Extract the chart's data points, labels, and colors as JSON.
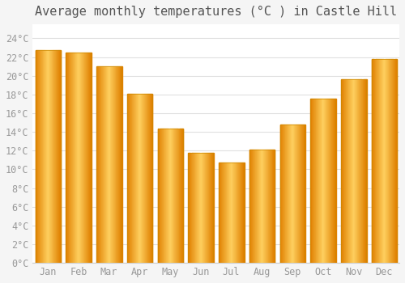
{
  "title": "Average monthly temperatures (°C ) in Castle Hill",
  "months": [
    "Jan",
    "Feb",
    "Mar",
    "Apr",
    "May",
    "Jun",
    "Jul",
    "Aug",
    "Sep",
    "Oct",
    "Nov",
    "Dec"
  ],
  "values": [
    22.7,
    22.5,
    21.0,
    18.1,
    14.4,
    11.8,
    10.7,
    12.1,
    14.8,
    17.6,
    19.6,
    21.8
  ],
  "bar_color_main": "#FFA500",
  "bar_color_light": "#FFD060",
  "bar_color_dark": "#E08000",
  "background_color": "#F5F5F5",
  "plot_bg_color": "#FFFFFF",
  "grid_color": "#E0E0E0",
  "ytick_labels": [
    "0°C",
    "2°C",
    "4°C",
    "6°C",
    "8°C",
    "10°C",
    "12°C",
    "14°C",
    "16°C",
    "18°C",
    "20°C",
    "22°C",
    "24°C"
  ],
  "ytick_values": [
    0,
    2,
    4,
    6,
    8,
    10,
    12,
    14,
    16,
    18,
    20,
    22,
    24
  ],
  "ylim": [
    0,
    25.5
  ],
  "title_fontsize": 11,
  "tick_fontsize": 8.5,
  "tick_color": "#999999",
  "title_color": "#555555",
  "figsize": [
    5.0,
    3.5
  ],
  "dpi": 100
}
